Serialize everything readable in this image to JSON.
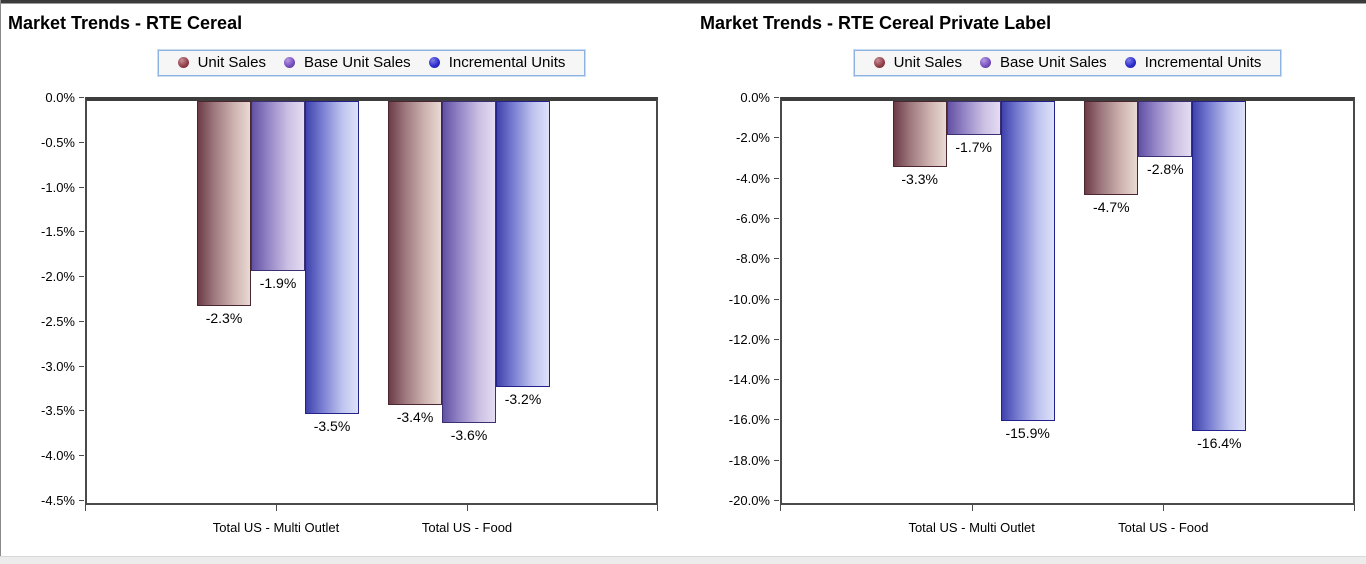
{
  "appearance": {
    "legend_border_color": "#8db3e2",
    "plot_border_color": "#4a4a4a",
    "background_color": "#ffffff",
    "text_color": "#000000"
  },
  "chart_data": [
    {
      "type": "bar",
      "title": "Market Trends - RTE Cereal",
      "categories": [
        "Total US - Multi Outlet",
        "Total US - Food"
      ],
      "y_tick_labels": [
        "0.0%",
        "-0.5%",
        "-1.0%",
        "-1.5%",
        "-2.0%",
        "-2.5%",
        "-3.0%",
        "-3.5%",
        "-4.0%",
        "-4.5%"
      ],
      "ylim": [
        -4.5,
        0
      ],
      "ytick_step": 0.5,
      "grid": false,
      "legend_position": "top",
      "series": [
        {
          "name": "Unit Sales",
          "values": [
            -2.3,
            -3.4
          ],
          "data_labels": [
            "-2.3%",
            "-3.4%"
          ],
          "marker_light": "#c98f95",
          "marker_color": "#93424c",
          "marker_dark": "#5f2029",
          "bar_border": "#4a2630",
          "bar_gradient": [
            "#6d3c47",
            "#9c767c",
            "#cfb4b1",
            "#e9d9d3"
          ]
        },
        {
          "name": "Base Unit Sales",
          "values": [
            -1.9,
            -3.6
          ],
          "data_labels": [
            "-1.9%",
            "-3.6%"
          ],
          "marker_light": "#b79ae2",
          "marker_color": "#7a52c2",
          "marker_dark": "#47297f",
          "bar_border": "#3c2f73",
          "bar_gradient": [
            "#6250a3",
            "#9183c5",
            "#ccc1e3",
            "#e4dcf2"
          ]
        },
        {
          "name": "Incremental Units",
          "values": [
            -3.5,
            -3.2
          ],
          "data_labels": [
            "-3.5%",
            "-3.2%"
          ],
          "marker_light": "#7f7fe8",
          "marker_color": "#2f2fcf",
          "marker_dark": "#16168f",
          "bar_border": "#22228a",
          "bar_gradient": [
            "#3f42ab",
            "#767bd0",
            "#bfc4ef",
            "#dee1f9"
          ]
        }
      ]
    },
    {
      "type": "bar",
      "title": "Market Trends - RTE Cereal Private Label",
      "categories": [
        "Total US - Multi Outlet",
        "Total US - Food"
      ],
      "y_tick_labels": [
        "0.0%",
        "-2.0%",
        "-4.0%",
        "-6.0%",
        "-8.0%",
        "-10.0%",
        "-12.0%",
        "-14.0%",
        "-16.0%",
        "-18.0%",
        "-20.0%"
      ],
      "ylim": [
        -20,
        0
      ],
      "ytick_step": 2,
      "grid": false,
      "legend_position": "top",
      "series": [
        {
          "name": "Unit Sales",
          "values": [
            -3.3,
            -4.7
          ],
          "data_labels": [
            "-3.3%",
            "-4.7%"
          ],
          "marker_light": "#c98f95",
          "marker_color": "#93424c",
          "marker_dark": "#5f2029",
          "bar_border": "#4a2630",
          "bar_gradient": [
            "#6d3c47",
            "#9c767c",
            "#cfb4b1",
            "#e9d9d3"
          ]
        },
        {
          "name": "Base Unit Sales",
          "values": [
            -1.7,
            -2.8
          ],
          "data_labels": [
            "-1.7%",
            "-2.8%"
          ],
          "marker_light": "#b79ae2",
          "marker_color": "#7a52c2",
          "marker_dark": "#47297f",
          "bar_border": "#3c2f73",
          "bar_gradient": [
            "#6250a3",
            "#9183c5",
            "#ccc1e3",
            "#e4dcf2"
          ]
        },
        {
          "name": "Incremental Units",
          "values": [
            -15.9,
            -16.4
          ],
          "data_labels": [
            "-15.9%",
            "-16.4%"
          ],
          "marker_light": "#7f7fe8",
          "marker_color": "#2f2fcf",
          "marker_dark": "#16168f",
          "bar_border": "#22228a",
          "bar_gradient": [
            "#3f42ab",
            "#767bd0",
            "#bfc4ef",
            "#dee1f9"
          ]
        }
      ]
    }
  ]
}
